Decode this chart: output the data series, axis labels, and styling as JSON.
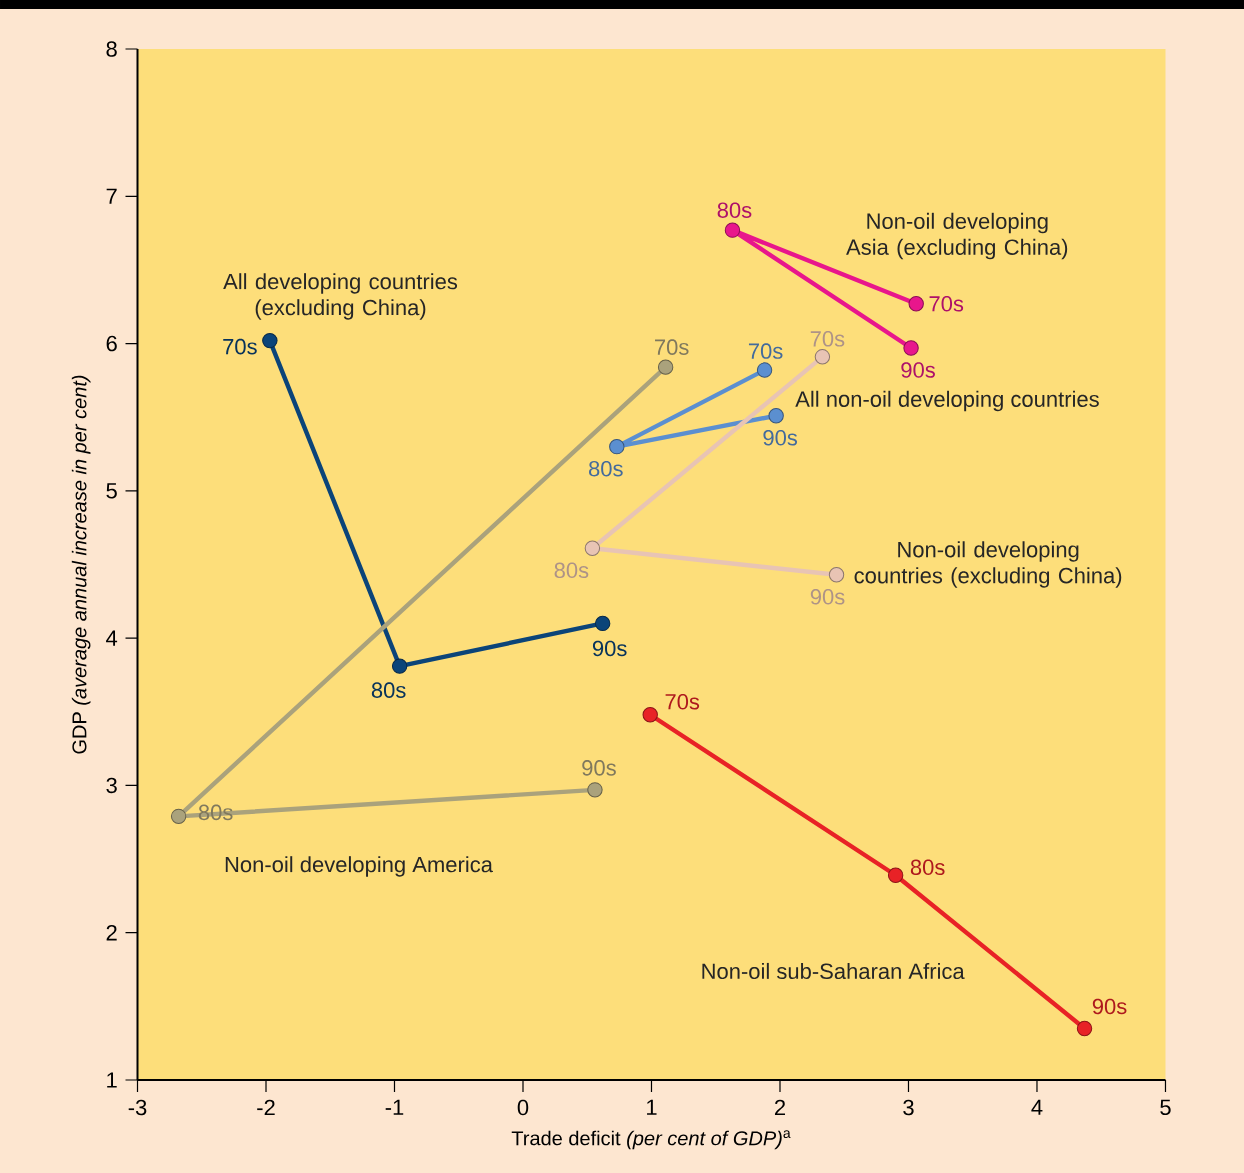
{
  "chart_data": {
    "type": "line",
    "xlabel": "Trade deficit *(per cent of GDP)*$^{a}$",
    "ylabel": "GDP *(average annual increase in per cent)*",
    "xlim": [
      -3,
      5
    ],
    "xticks": [
      -3,
      -2,
      -1,
      0,
      1,
      2,
      3,
      4,
      5
    ],
    "ylim": [
      1,
      8
    ],
    "yticks": [
      1,
      2,
      3,
      4,
      5,
      6,
      7,
      8
    ],
    "grid": false,
    "marker": "circle",
    "line_style": "solid",
    "series": [
      {
        "name": "All developing countries (excluding China)",
        "color": "#0b4479",
        "x": [
          -1.97,
          -0.96,
          0.62
        ],
        "values": [
          6.02,
          3.81,
          4.1
        ]
      },
      {
        "name": "Non-oil developing Asia (excluding China)",
        "color": "#e8168c",
        "x": [
          3.06,
          1.63,
          3.02
        ],
        "values": [
          6.27,
          6.77,
          5.97
        ]
      },
      {
        "name": "All non-oil developing countries",
        "color": "#5b8fd0",
        "x": [
          1.88,
          0.73,
          1.97
        ],
        "values": [
          5.82,
          5.3,
          5.51
        ]
      },
      {
        "name": "Non-oil developing countries (excluding China)",
        "color": "#e8c4b4",
        "x": [
          2.33,
          0.54,
          2.44
        ],
        "values": [
          5.91,
          4.61,
          4.43
        ]
      },
      {
        "name": "Non-oil developing America",
        "color": "#aaa27c",
        "x": [
          1.11,
          -2.68,
          0.56
        ],
        "values": [
          5.84,
          2.79,
          2.97
        ]
      },
      {
        "name": "Non-oil sub-Saharan Africa",
        "color": "#e82226",
        "x": [
          0.99,
          2.9,
          4.37
        ],
        "values": [
          3.48,
          2.39,
          1.35
        ]
      }
    ],
    "annotations": [
      {
        "text": "70s",
        "x": -1.97,
        "y": 6.02
      },
      {
        "text": "80s",
        "x": -0.96,
        "y": 3.81
      },
      {
        "text": "90s",
        "x": 0.62,
        "y": 4.1
      },
      {
        "text": "70s",
        "x": 3.06,
        "y": 6.27
      },
      {
        "text": "80s",
        "x": 1.63,
        "y": 6.77
      },
      {
        "text": "90s",
        "x": 3.02,
        "y": 5.97
      },
      {
        "text": "70s",
        "x": 1.88,
        "y": 5.82
      },
      {
        "text": "80s",
        "x": 0.73,
        "y": 5.3
      },
      {
        "text": "90s",
        "x": 1.97,
        "y": 5.51
      },
      {
        "text": "70s",
        "x": 2.33,
        "y": 5.91
      },
      {
        "text": "80s",
        "x": 0.54,
        "y": 4.61
      },
      {
        "text": "90s",
        "x": 2.44,
        "y": 4.43
      },
      {
        "text": "70s",
        "x": 1.11,
        "y": 5.84
      },
      {
        "text": "80s",
        "x": -2.68,
        "y": 2.79
      },
      {
        "text": "90s",
        "x": 0.56,
        "y": 2.97
      },
      {
        "text": "70s",
        "x": 0.99,
        "y": 3.48
      },
      {
        "text": "80s",
        "x": 2.9,
        "y": 2.39
      },
      {
        "text": "90s",
        "x": 4.37,
        "y": 1.35
      }
    ]
  }
}
